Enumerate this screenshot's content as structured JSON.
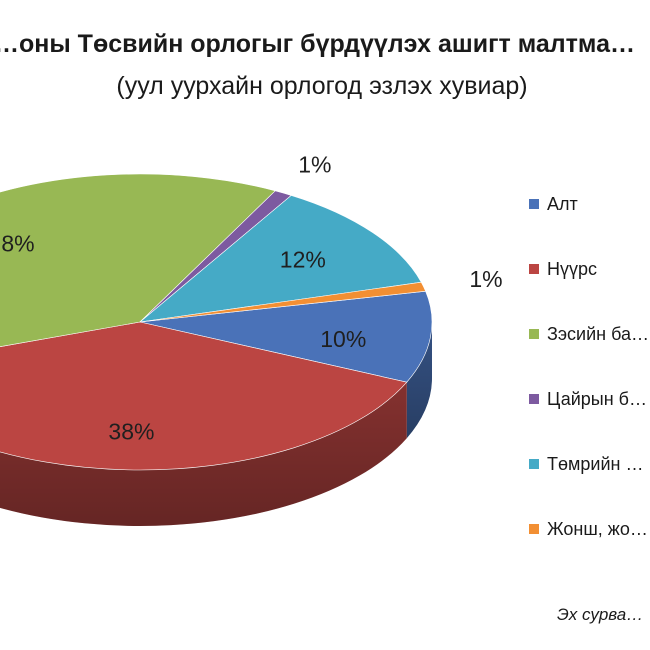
{
  "chart_data": {
    "type": "pie",
    "title": "…оны Төсвийн орлогыг бүрдүүлэх ашигт малтма…",
    "subtitle": "(уул уурхайн орлогод эзлэх хувиар)",
    "slices": [
      {
        "name": "Алт",
        "value": 10,
        "label": "10%",
        "color": "#4a72b8"
      },
      {
        "name": "Нүүрс",
        "value": 38,
        "label": "38%",
        "color": "#bb4542"
      },
      {
        "name": "Зэсийн ба…",
        "value": 38,
        "label": "…8%",
        "color": "#98b854"
      },
      {
        "name": "Цайрын б…",
        "value": 1,
        "label": "1%",
        "color": "#7d5aa0"
      },
      {
        "name": "Төмрийн …",
        "value": 12,
        "label": "12%",
        "color": "#45aac6"
      },
      {
        "name": "Жонш, жо…",
        "value": 1,
        "label": "1%",
        "color": "#f28f33"
      }
    ],
    "legend_position": "right",
    "source": "Эх сурва…"
  }
}
